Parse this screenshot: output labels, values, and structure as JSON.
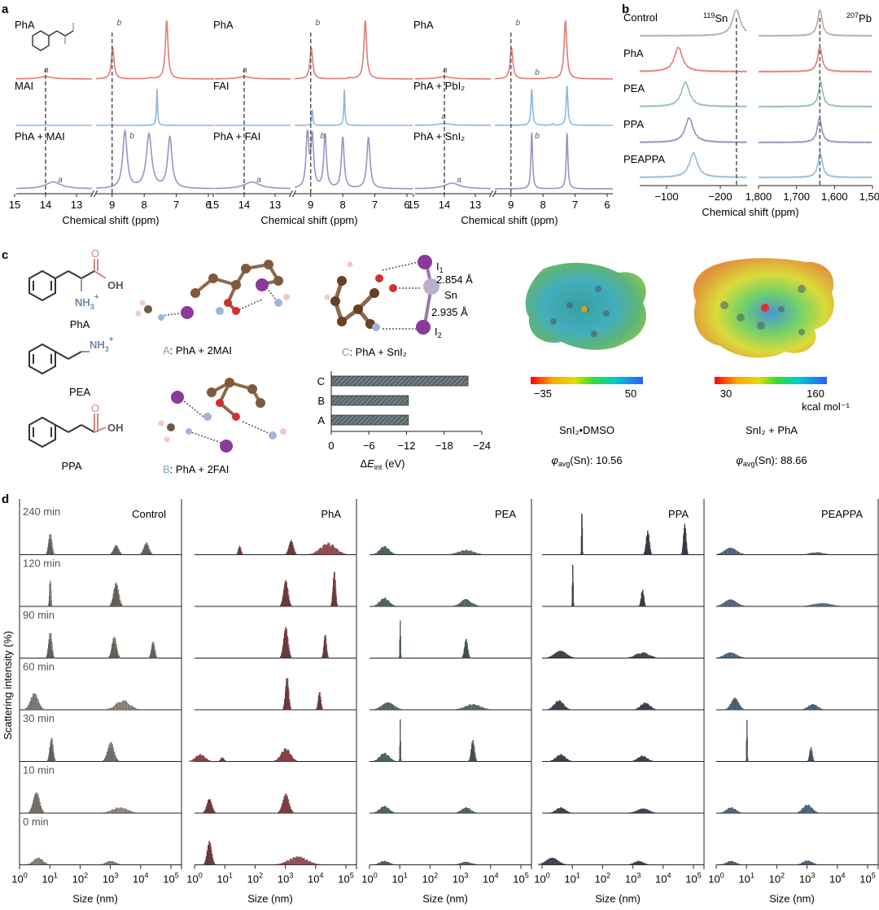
{
  "panel_letters": [
    "a",
    "b",
    "c",
    "d"
  ],
  "colors": {
    "control": "#b9aa9a",
    "pha": "#e07b77",
    "pea": "#8dbdb0",
    "ppa": "#9d8ab8",
    "peappa": "#8fbbdb",
    "blue_ref": "#8fb8dc",
    "purple_mix": "#9c92c4",
    "bar_fill": "#59676a",
    "dash": "#555555"
  },
  "panel_a": {
    "xlabel": "Chemical shift (ppm)",
    "ticks_left": [
      "15",
      "14",
      "13"
    ],
    "ticks_right": [
      "9",
      "8",
      "7",
      "6"
    ],
    "groups": [
      {
        "traces": [
          {
            "label": "PhA",
            "color": "#e07b77",
            "peaks": [
              {
                "x": 14,
                "h": 0.12,
                "w": 0.25
              },
              {
                "x": 8.98,
                "h": 1.6,
                "w": 0.05
              },
              {
                "x": 7.3,
                "h": 3.0,
                "w": 0.05
              },
              {
                "x": 7.8,
                "h": 0.05,
                "w": 0.05
              }
            ]
          },
          {
            "label": "MAI",
            "color": "#8fb8dc",
            "peaks": [
              {
                "x": 7.6,
                "h": 1.0,
                "w": 0.02
              }
            ]
          },
          {
            "label": "PhA + MAI",
            "color": "#9c92c4",
            "peaks": [
              {
                "x": 13.75,
                "h": 0.12,
                "w": 0.3
              },
              {
                "x": 8.6,
                "h": 1.0,
                "w": 0.08
              },
              {
                "x": 7.85,
                "h": 0.95,
                "w": 0.1
              },
              {
                "x": 7.2,
                "h": 0.9,
                "w": 0.08
              }
            ]
          }
        ],
        "annot": [
          {
            "t": "a",
            "x": 14.05,
            "row": 0
          },
          {
            "t": "b",
            "x": 8.85,
            "row": 0
          },
          {
            "t": "a",
            "x": 13.6,
            "row": 2
          },
          {
            "t": "b",
            "x": 8.45,
            "row": 2
          }
        ]
      },
      {
        "traces": [
          {
            "label": "PhA",
            "color": "#e07b77",
            "peaks": [
              {
                "x": 14,
                "h": 0.12,
                "w": 0.25
              },
              {
                "x": 8.98,
                "h": 1.6,
                "w": 0.05
              },
              {
                "x": 7.3,
                "h": 3.0,
                "w": 0.05
              },
              {
                "x": 7.8,
                "h": 0.05,
                "w": 0.05
              }
            ]
          },
          {
            "label": "FAI",
            "color": "#8fb8dc",
            "peaks": [
              {
                "x": 8.95,
                "h": 0.45,
                "w": 0.02
              },
              {
                "x": 7.95,
                "h": 1.0,
                "w": 0.02
              }
            ]
          },
          {
            "label": "PhA + FAI",
            "color": "#9c92c4",
            "peaks": [
              {
                "x": 13.75,
                "h": 0.12,
                "w": 0.3
              },
              {
                "x": 9.1,
                "h": 1.0,
                "w": 0.05
              },
              {
                "x": 8.95,
                "h": 0.9,
                "w": 0.05
              },
              {
                "x": 8.55,
                "h": 0.95,
                "w": 0.05
              },
              {
                "x": 8.0,
                "h": 0.9,
                "w": 0.05
              },
              {
                "x": 7.2,
                "h": 0.9,
                "w": 0.06
              }
            ]
          }
        ],
        "annot": [
          {
            "t": "a",
            "x": 14.05,
            "row": 0
          },
          {
            "t": "b",
            "x": 8.85,
            "row": 0
          },
          {
            "t": "a",
            "x": 13.6,
            "row": 2
          },
          {
            "t": "b",
            "x": 8.7,
            "row": 2
          }
        ]
      },
      {
        "traces": [
          {
            "label": "PhA",
            "color": "#e07b77",
            "peaks": [
              {
                "x": 14,
                "h": 0.12,
                "w": 0.25
              },
              {
                "x": 8.98,
                "h": 1.6,
                "w": 0.05
              },
              {
                "x": 7.3,
                "h": 3.0,
                "w": 0.05
              },
              {
                "x": 7.8,
                "h": 0.05,
                "w": 0.05
              }
            ]
          },
          {
            "label": "PhA + PbI₂",
            "color": "#8fb8dc",
            "peaks": [
              {
                "x": 14,
                "h": 0.05,
                "w": 0.25
              },
              {
                "x": 8.35,
                "h": 1.0,
                "w": 0.03
              },
              {
                "x": 7.25,
                "h": 1.1,
                "w": 0.03
              },
              {
                "x": 7.7,
                "h": 0.04,
                "w": 0.03
              }
            ]
          },
          {
            "label": "PhA + SnI₂",
            "color": "#9c92c4",
            "peaks": [
              {
                "x": 13.75,
                "h": 0.1,
                "w": 0.3
              },
              {
                "x": 8.35,
                "h": 1.0,
                "w": 0.03
              },
              {
                "x": 7.25,
                "h": 1.0,
                "w": 0.03
              }
            ]
          }
        ],
        "annot": [
          {
            "t": "a",
            "x": 14.05,
            "row": 0
          },
          {
            "t": "b",
            "x": 8.85,
            "row": 0
          },
          {
            "t": "a",
            "x": 14.1,
            "row": 1
          },
          {
            "t": "b",
            "x": 8.25,
            "row": 1
          },
          {
            "t": "a",
            "x": 13.6,
            "row": 2
          },
          {
            "t": "b",
            "x": 8.25,
            "row": 2
          }
        ]
      }
    ]
  },
  "panel_b": {
    "xlabel": "Chemical shift (ppm)",
    "sn_label": "119",
    "sn_label2": "Sn",
    "pb_label": "207",
    "pb_label2": "Pb",
    "sn_ticks": [
      "−100",
      "−200"
    ],
    "pb_ticks": [
      "1,800",
      "1,700",
      "1,600",
      "1,500"
    ],
    "traces": [
      {
        "label": "Control",
        "color": "#b9aa9a",
        "sn_peak": -230,
        "pb_peak": 1630
      },
      {
        "label": "PhA",
        "color": "#e07b77",
        "sn_peak": -122,
        "pb_peak": 1630
      },
      {
        "label": "PEA",
        "color": "#8dbdb0",
        "sn_peak": -135,
        "pb_peak": 1628
      },
      {
        "label": "PPA",
        "color": "#9d8ab8",
        "sn_peak": -142,
        "pb_peak": 1631
      },
      {
        "label": "PEAPPA",
        "color": "#8fbbdb",
        "sn_peak": -150,
        "pb_peak": 1629
      }
    ]
  },
  "panel_c": {
    "molecules": [
      {
        "label": "PhA",
        "group1": "NH",
        "group1_sub": "3",
        "group1_sup": "+",
        "group2": "OH",
        "group2_o": "O"
      },
      {
        "label": "PEA",
        "group1": "NH",
        "group1_sub": "3",
        "group1_sup": "+"
      },
      {
        "label": "PPA",
        "group2": "OH",
        "group2_o": "O"
      }
    ],
    "complex_labels": [
      {
        "letter": "A",
        "text": ": PhA + 2MAI",
        "color": "#7fa3a3"
      },
      {
        "letter": "B",
        "text": ": PhA + 2FAI",
        "color": "#7fa7c9"
      },
      {
        "letter": "C",
        "text": ": PhA + SnI₂",
        "color": "#8f86b5"
      }
    ],
    "sn_atom": "Sn",
    "i1_atom": "I",
    "i1_sub": "1",
    "i2_atom": "I",
    "i2_sub": "2",
    "bond_lengths": [
      "2.854 Å",
      "2.935 Å"
    ],
    "bar_chart": {
      "categories": [
        "C",
        "B",
        "A"
      ],
      "values": [
        -21.8,
        -12.3,
        -12.3
      ],
      "ticks": [
        "0",
        "−6",
        "−12",
        "−18",
        "−24"
      ],
      "xlabel_pre": "Δ",
      "xlabel_var": "E",
      "xlabel_sub": "int",
      "xlabel_unit": " (eV)"
    },
    "esp1": {
      "scale_min": "−35",
      "scale_max": "50",
      "title": "SnI₂•DMSO",
      "phi_pre": "φ",
      "phi_sub": "avg",
      "phi_text": "(Sn): 10.56"
    },
    "esp2": {
      "scale_min": "30",
      "scale_max": "160",
      "unit": "kcal mol⁻¹",
      "title": "SnI₂ + PhA",
      "phi_pre": "φ",
      "phi_sub": "avg",
      "phi_text": "(Sn): 88.66"
    }
  },
  "chart_data": {
    "type": "bar",
    "ylabel": "Scattering intensity (%)",
    "xlabel": "Size (nm)",
    "x_scale": "log",
    "xlim_nm": [
      1,
      100000
    ],
    "tick_base": "10",
    "tick_exps": [
      "0",
      "1",
      "2",
      "3",
      "4",
      "5"
    ],
    "time_labels": [
      "240 min",
      "120 min",
      "90 min",
      "60 min",
      "30 min",
      "10 min",
      "0 min"
    ],
    "columns": [
      {
        "name": "Control",
        "color": "#b3a497",
        "rows": [
          [
            {
              "c": 10,
              "w": 0.05,
              "h": 0.45
            },
            {
              "c": 1500,
              "w": 0.08,
              "h": 0.2
            },
            {
              "c": 15000,
              "w": 0.08,
              "h": 0.25
            }
          ],
          [
            {
              "c": 10,
              "w": 0.02,
              "h": 0.6
            },
            {
              "c": 1500,
              "w": 0.08,
              "h": 0.5
            }
          ],
          [
            {
              "c": 10,
              "w": 0.05,
              "h": 0.55
            },
            {
              "c": 1300,
              "w": 0.07,
              "h": 0.45
            },
            {
              "c": 25000,
              "w": 0.05,
              "h": 0.35
            }
          ],
          [
            {
              "c": 3,
              "w": 0.12,
              "h": 0.35
            },
            {
              "c": 2500,
              "w": 0.22,
              "h": 0.2
            }
          ],
          [
            {
              "c": 11,
              "w": 0.05,
              "h": 0.5
            },
            {
              "c": 1000,
              "w": 0.1,
              "h": 0.4
            }
          ],
          [
            {
              "c": 3.5,
              "w": 0.1,
              "h": 0.45
            },
            {
              "c": 2000,
              "w": 0.25,
              "h": 0.12
            }
          ],
          [
            {
              "c": 4,
              "w": 0.15,
              "h": 0.15
            },
            {
              "c": 1000,
              "w": 0.15,
              "h": 0.08
            }
          ]
        ]
      },
      {
        "name": "PhA",
        "color": "#b84a4e",
        "rows": [
          [
            {
              "c": 30,
              "w": 0.04,
              "h": 0.18
            },
            {
              "c": 1500,
              "w": 0.07,
              "h": 0.3
            },
            {
              "c": 25000,
              "w": 0.25,
              "h": 0.25
            }
          ],
          [
            {
              "c": 1000,
              "w": 0.07,
              "h": 0.55
            },
            {
              "c": 40000,
              "w": 0.04,
              "h": 0.75
            }
          ],
          [
            {
              "c": 1000,
              "w": 0.07,
              "h": 0.65
            },
            {
              "c": 20000,
              "w": 0.04,
              "h": 0.5
            }
          ],
          [
            {
              "c": 1100,
              "w": 0.05,
              "h": 0.7
            },
            {
              "c": 13000,
              "w": 0.04,
              "h": 0.38
            }
          ],
          [
            {
              "c": 1.5,
              "w": 0.15,
              "h": 0.15
            },
            {
              "c": 8,
              "w": 0.05,
              "h": 0.08
            },
            {
              "c": 1000,
              "w": 0.15,
              "h": 0.28
            }
          ],
          [
            {
              "c": 3,
              "w": 0.08,
              "h": 0.3
            },
            {
              "c": 1000,
              "w": 0.1,
              "h": 0.4
            }
          ],
          [
            {
              "c": 3,
              "w": 0.07,
              "h": 0.5
            },
            {
              "c": 2500,
              "w": 0.3,
              "h": 0.18
            }
          ]
        ]
      },
      {
        "name": "PEA",
        "color": "#5f7e7a",
        "rows": [
          [
            {
              "c": 3,
              "w": 0.15,
              "h": 0.18
            },
            {
              "c": 1500,
              "w": 0.25,
              "h": 0.1
            }
          ],
          [
            {
              "c": 3,
              "w": 0.15,
              "h": 0.18
            },
            {
              "c": 1500,
              "w": 0.18,
              "h": 0.15
            }
          ],
          [
            {
              "c": 10,
              "w": 0.008,
              "h": 0.9
            },
            {
              "c": 1500,
              "w": 0.05,
              "h": 0.4
            }
          ],
          [
            {
              "c": 4,
              "w": 0.2,
              "h": 0.15
            },
            {
              "c": 2500,
              "w": 0.25,
              "h": 0.12
            }
          ],
          [
            {
              "c": 3,
              "w": 0.15,
              "h": 0.18
            },
            {
              "c": 2500,
              "w": 0.05,
              "h": 0.45
            },
            {
              "c": 10,
              "w": 0.008,
              "h": 0.9
            }
          ],
          [
            {
              "c": 3,
              "w": 0.15,
              "h": 0.15
            },
            {
              "c": 1500,
              "w": 0.15,
              "h": 0.12
            }
          ],
          [
            {
              "c": 3,
              "w": 0.15,
              "h": 0.08
            },
            {
              "c": 1500,
              "w": 0.18,
              "h": 0.06
            }
          ]
        ]
      },
      {
        "name": "PPA",
        "color": "#4b4460",
        "rows": [
          [
            {
              "c": 20,
              "w": 0.006,
              "h": 1.0
            },
            {
              "c": 3000,
              "w": 0.05,
              "h": 0.5
            },
            {
              "c": 50000,
              "w": 0.04,
              "h": 0.65
            }
          ],
          [
            {
              "c": 10,
              "w": 0.008,
              "h": 1.0
            },
            {
              "c": 2000,
              "w": 0.04,
              "h": 0.35
            }
          ],
          [
            {
              "c": 4,
              "w": 0.2,
              "h": 0.15
            },
            {
              "c": 2000,
              "w": 0.22,
              "h": 0.12
            }
          ],
          [
            {
              "c": 3.5,
              "w": 0.15,
              "h": 0.2
            },
            {
              "c": 2500,
              "w": 0.15,
              "h": 0.15
            }
          ],
          [
            {
              "c": 4,
              "w": 0.15,
              "h": 0.15
            },
            {
              "c": 2000,
              "w": 0.15,
              "h": 0.12
            }
          ],
          [
            {
              "c": 4,
              "w": 0.15,
              "h": 0.12
            },
            {
              "c": 2000,
              "w": 0.2,
              "h": 0.1
            }
          ],
          [
            {
              "c": 2,
              "w": 0.2,
              "h": 0.15
            },
            {
              "c": 1500,
              "w": 0.15,
              "h": 0.08
            }
          ]
        ]
      },
      {
        "name": "PEAPPA",
        "color": "#5c7fa3",
        "rows": [
          [
            {
              "c": 3,
              "w": 0.2,
              "h": 0.15
            },
            {
              "c": 2000,
              "w": 0.22,
              "h": 0.05
            }
          ],
          [
            {
              "c": 3,
              "w": 0.2,
              "h": 0.15
            },
            {
              "c": 3000,
              "w": 0.3,
              "h": 0.07
            }
          ],
          [
            {
              "c": 3,
              "w": 0.2,
              "h": 0.12
            }
          ],
          [
            {
              "c": 4,
              "w": 0.12,
              "h": 0.25
            },
            {
              "c": 1500,
              "w": 0.15,
              "h": 0.12
            }
          ],
          [
            {
              "c": 10,
              "w": 0.006,
              "h": 1.0
            },
            {
              "c": 1300,
              "w": 0.04,
              "h": 0.3
            }
          ],
          [
            {
              "c": 3,
              "w": 0.15,
              "h": 0.12
            },
            {
              "c": 1000,
              "w": 0.15,
              "h": 0.18
            }
          ],
          [
            {
              "c": 3,
              "w": 0.15,
              "h": 0.08
            },
            {
              "c": 1000,
              "w": 0.15,
              "h": 0.09
            }
          ]
        ]
      }
    ]
  }
}
